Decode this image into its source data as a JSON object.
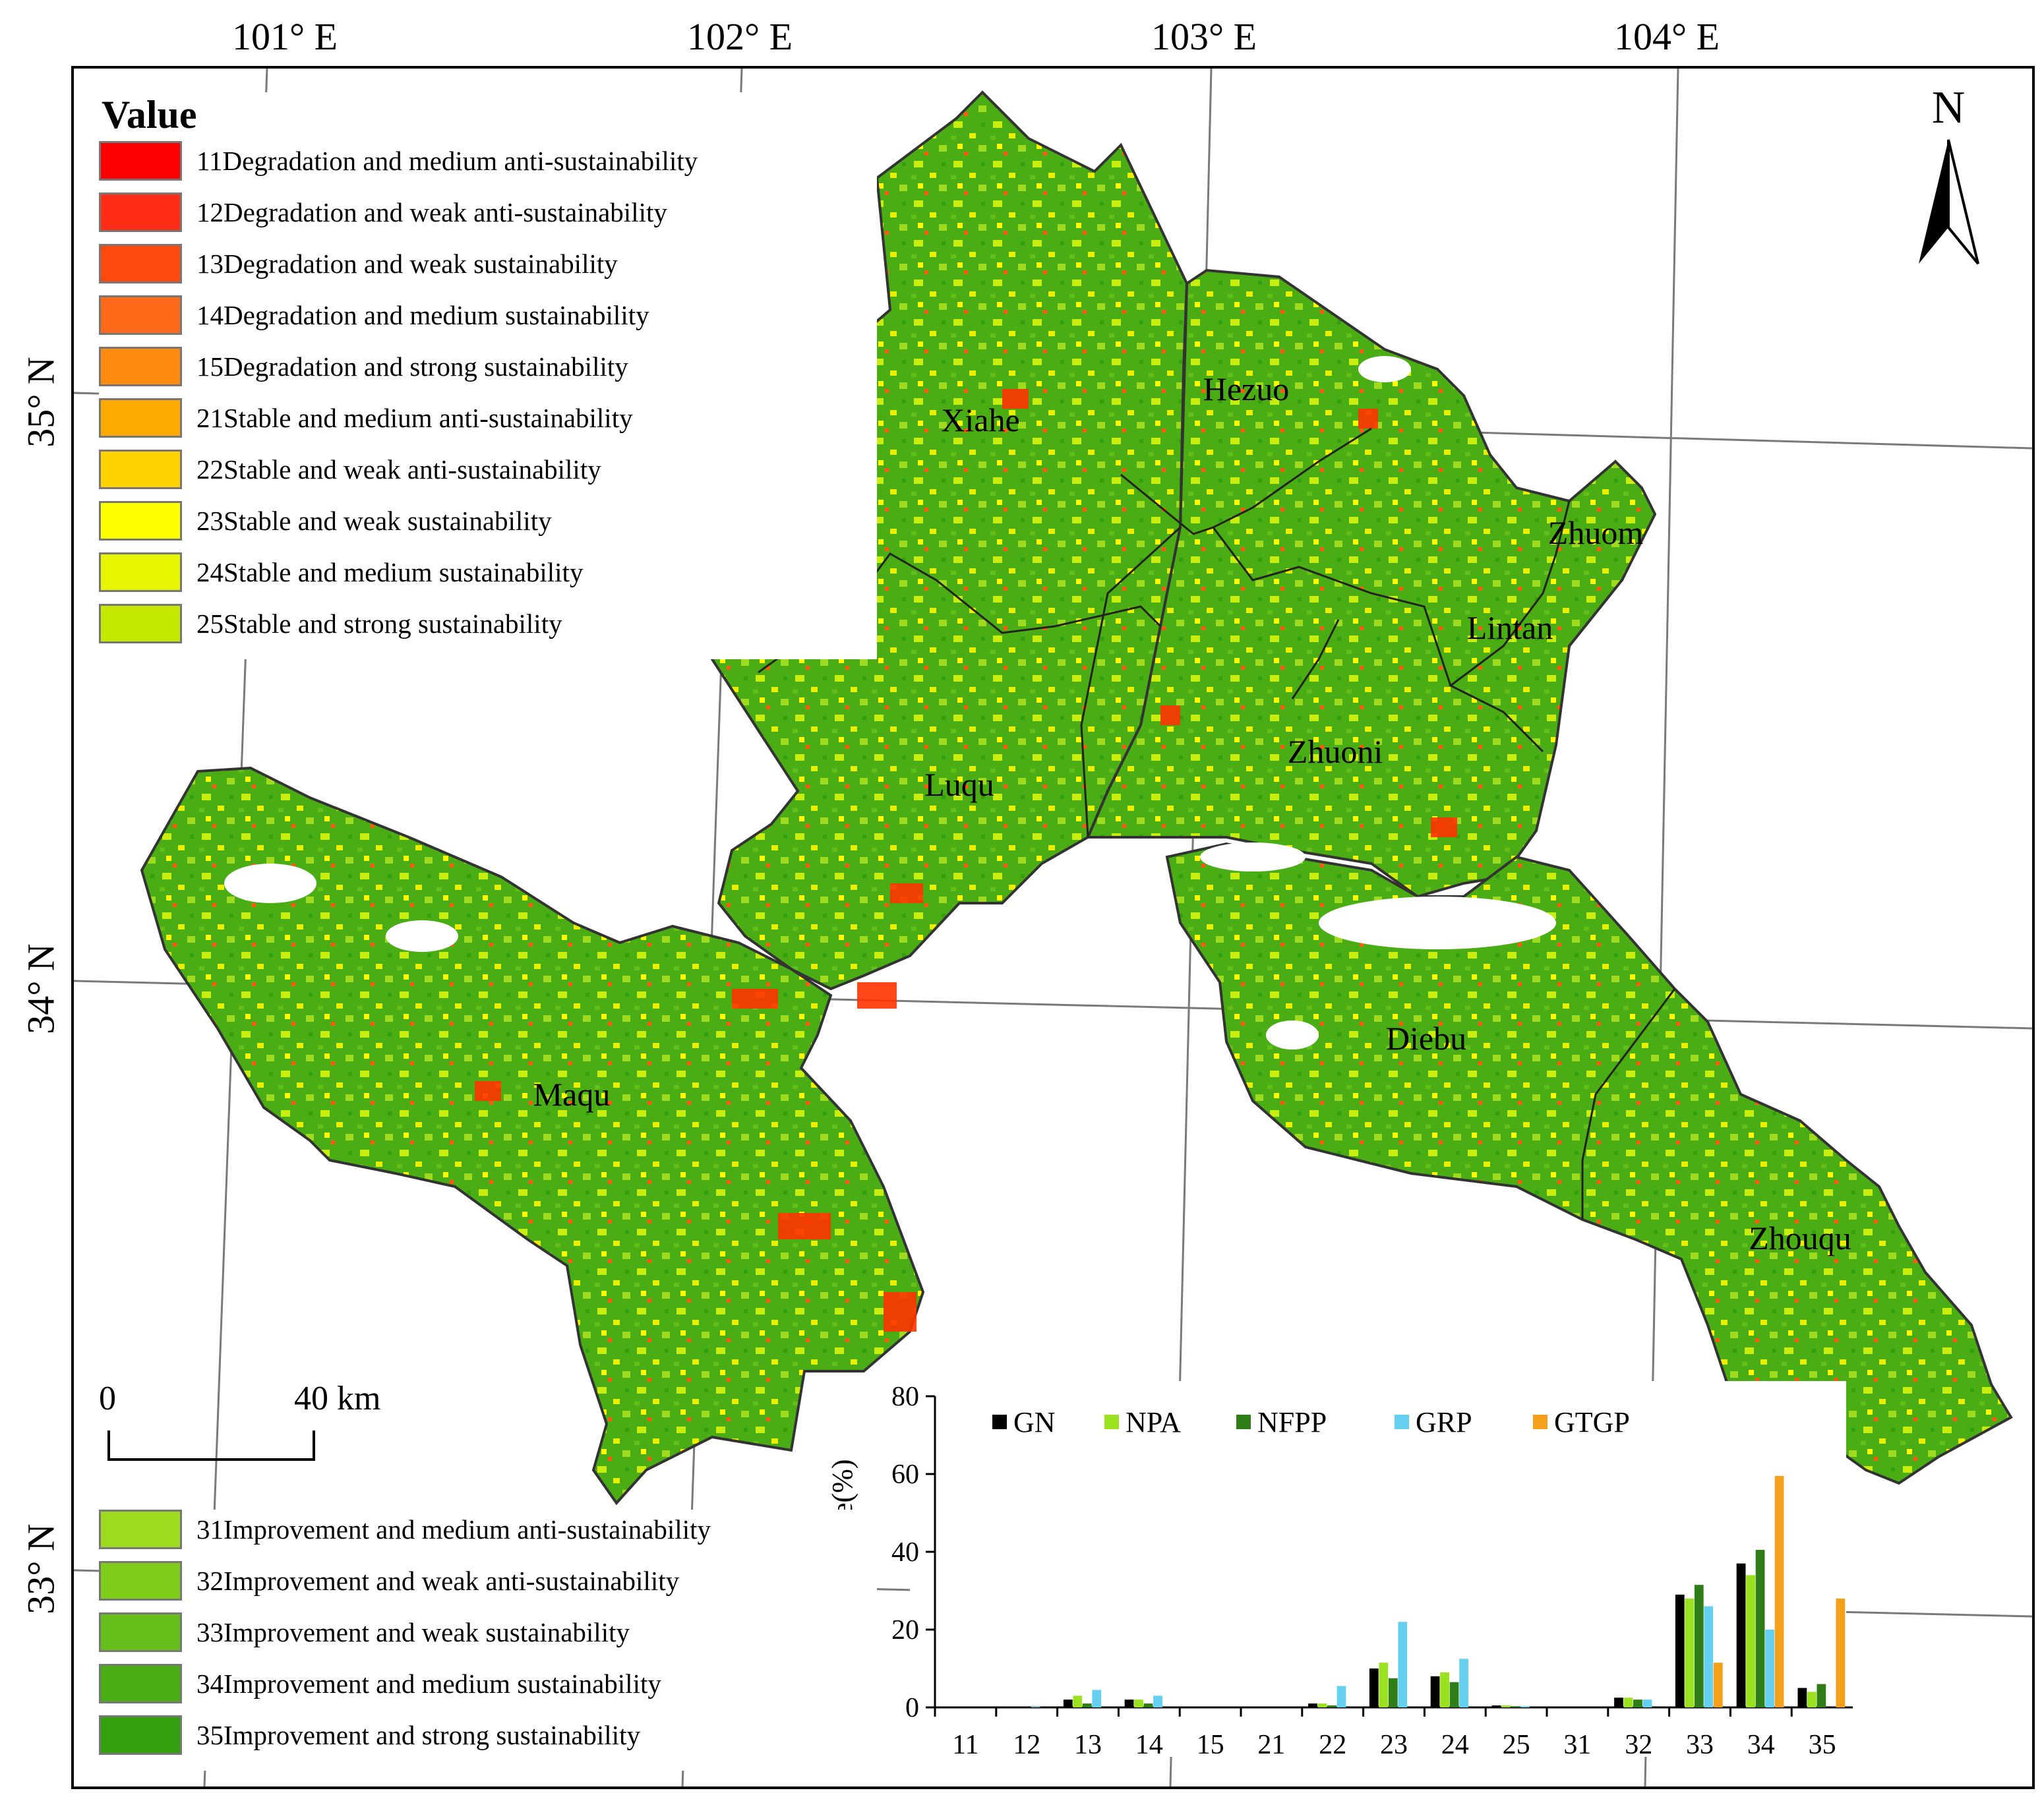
{
  "graticule": {
    "longitudes": [
      "101° E",
      "102° E",
      "103° E",
      "104° E"
    ],
    "latitudes": [
      "35° N",
      "34° N",
      "33° N"
    ]
  },
  "legend": {
    "title": "Value",
    "items": [
      {
        "code": "11",
        "label": "11Degradation and medium anti-sustainability",
        "color": "#ff0000"
      },
      {
        "code": "12",
        "label": "12Degradation and weak anti-sustainability",
        "color": "#ff2d16"
      },
      {
        "code": "13",
        "label": "13Degradation and weak sustainability",
        "color": "#ff4a0f"
      },
      {
        "code": "14",
        "label": "14Degradation and medium sustainability",
        "color": "#ff6a1a"
      },
      {
        "code": "15",
        "label": "15Degradation and strong sustainability",
        "color": "#ff8a10"
      },
      {
        "code": "21",
        "label": "21Stable and medium anti-sustainability",
        "color": "#ffaa00"
      },
      {
        "code": "22",
        "label": "22Stable and weak anti-sustainability",
        "color": "#ffd200"
      },
      {
        "code": "23",
        "label": "23Stable and weak sustainability",
        "color": "#ffff00"
      },
      {
        "code": "24",
        "label": "24Stable and medium sustainability",
        "color": "#e6f500"
      },
      {
        "code": "25",
        "label": "25Stable and strong sustainability",
        "color": "#c4e800"
      }
    ],
    "items2": [
      {
        "code": "31",
        "label": "31Improvement and medium anti-sustainability",
        "color": "#9edb1e"
      },
      {
        "code": "32",
        "label": "32Improvement and weak anti-sustainability",
        "color": "#7fcc1a"
      },
      {
        "code": "33",
        "label": "33Improvement and weak sustainability",
        "color": "#64bf1a"
      },
      {
        "code": "34",
        "label": "34Improvement and medium sustainability",
        "color": "#4aad14"
      },
      {
        "code": "35",
        "label": "35Improvement and strong sustainability",
        "color": "#33a010"
      }
    ]
  },
  "counties": [
    "Xiahe",
    "Hezuo",
    "Zhuom",
    "Lintan",
    "Luqu",
    "Zhuoni",
    "Maqu",
    "Diebu",
    "Zhouqu"
  ],
  "scale_bar": {
    "start": "0",
    "end": "40 km"
  },
  "north_arrow": {
    "letter": "N"
  },
  "chart_data": {
    "type": "bar",
    "ylabel": "Area percentage(%)",
    "xlabel": "",
    "ylim": [
      0,
      80
    ],
    "yticks": [
      0,
      20,
      40,
      60,
      80
    ],
    "categories": [
      "11",
      "12",
      "13",
      "14",
      "15",
      "21",
      "22",
      "23",
      "24",
      "25",
      "31",
      "32",
      "33",
      "34",
      "35"
    ],
    "series": [
      {
        "name": "GN",
        "color": "#000000",
        "values": [
          0,
          0,
          2,
          2,
          0,
          0,
          1,
          10,
          8,
          0.5,
          0,
          2.5,
          29,
          37,
          5
        ]
      },
      {
        "name": "NPA",
        "color": "#9ae21f",
        "values": [
          0,
          0,
          3,
          2,
          0,
          0,
          1,
          11.5,
          9,
          0.5,
          0,
          2.5,
          28,
          34,
          4
        ]
      },
      {
        "name": "NFPP",
        "color": "#2e7d16",
        "values": [
          0,
          0,
          1,
          1,
          0,
          0,
          0.5,
          7.5,
          6.5,
          0.3,
          0,
          2,
          31.5,
          40.5,
          6
        ]
      },
      {
        "name": "GRP",
        "color": "#66d0f0",
        "values": [
          0,
          0.2,
          4.5,
          3,
          0,
          0,
          5.5,
          22,
          12.5,
          0.3,
          0,
          2,
          26,
          20,
          0
        ]
      },
      {
        "name": "GTGP",
        "color": "#f5a01a",
        "values": [
          0,
          0,
          0,
          0,
          0,
          0,
          0,
          0,
          0,
          0,
          0,
          0,
          11.5,
          59.5,
          28
        ]
      }
    ]
  }
}
